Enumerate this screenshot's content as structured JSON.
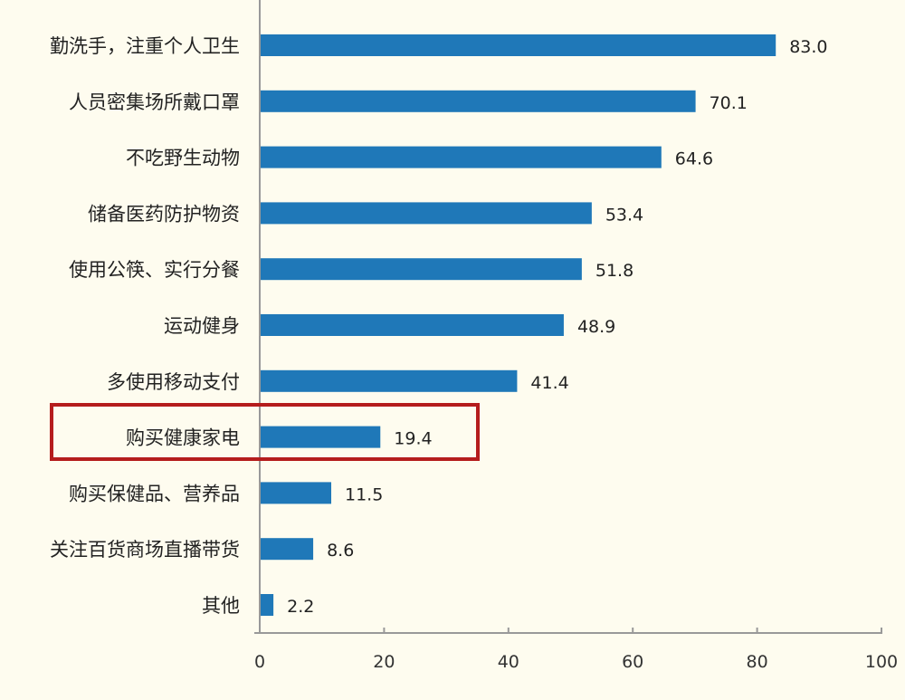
{
  "chart_data": {
    "type": "bar",
    "orientation": "horizontal",
    "categories": [
      "勤洗手，注重个人卫生",
      "人员密集场所戴口罩",
      "不吃野生动物",
      "储备医药防护物资",
      "使用公筷、实行分餐",
      "运动健身",
      "多使用移动支付",
      "购买健康家电",
      "购买保健品、营养品",
      "关注百货商场直播带货",
      "其他"
    ],
    "values": [
      83.0,
      70.1,
      64.6,
      53.4,
      51.8,
      48.9,
      41.4,
      19.4,
      11.5,
      8.6,
      2.2
    ],
    "value_labels": [
      "83.0",
      "70.1",
      "64.6",
      "53.4",
      "51.8",
      "48.9",
      "41.4",
      "19.4",
      "11.5",
      "8.6",
      "2.2"
    ],
    "xlim": [
      0,
      100
    ],
    "xticks": [
      "0",
      "20",
      "40",
      "60",
      "80",
      "100"
    ],
    "grid": false,
    "highlighted_category": "购买健康家电",
    "colors": {
      "bar": "#1f78b8",
      "highlight_box": "#b51d1d",
      "background": "#fefcef"
    }
  }
}
